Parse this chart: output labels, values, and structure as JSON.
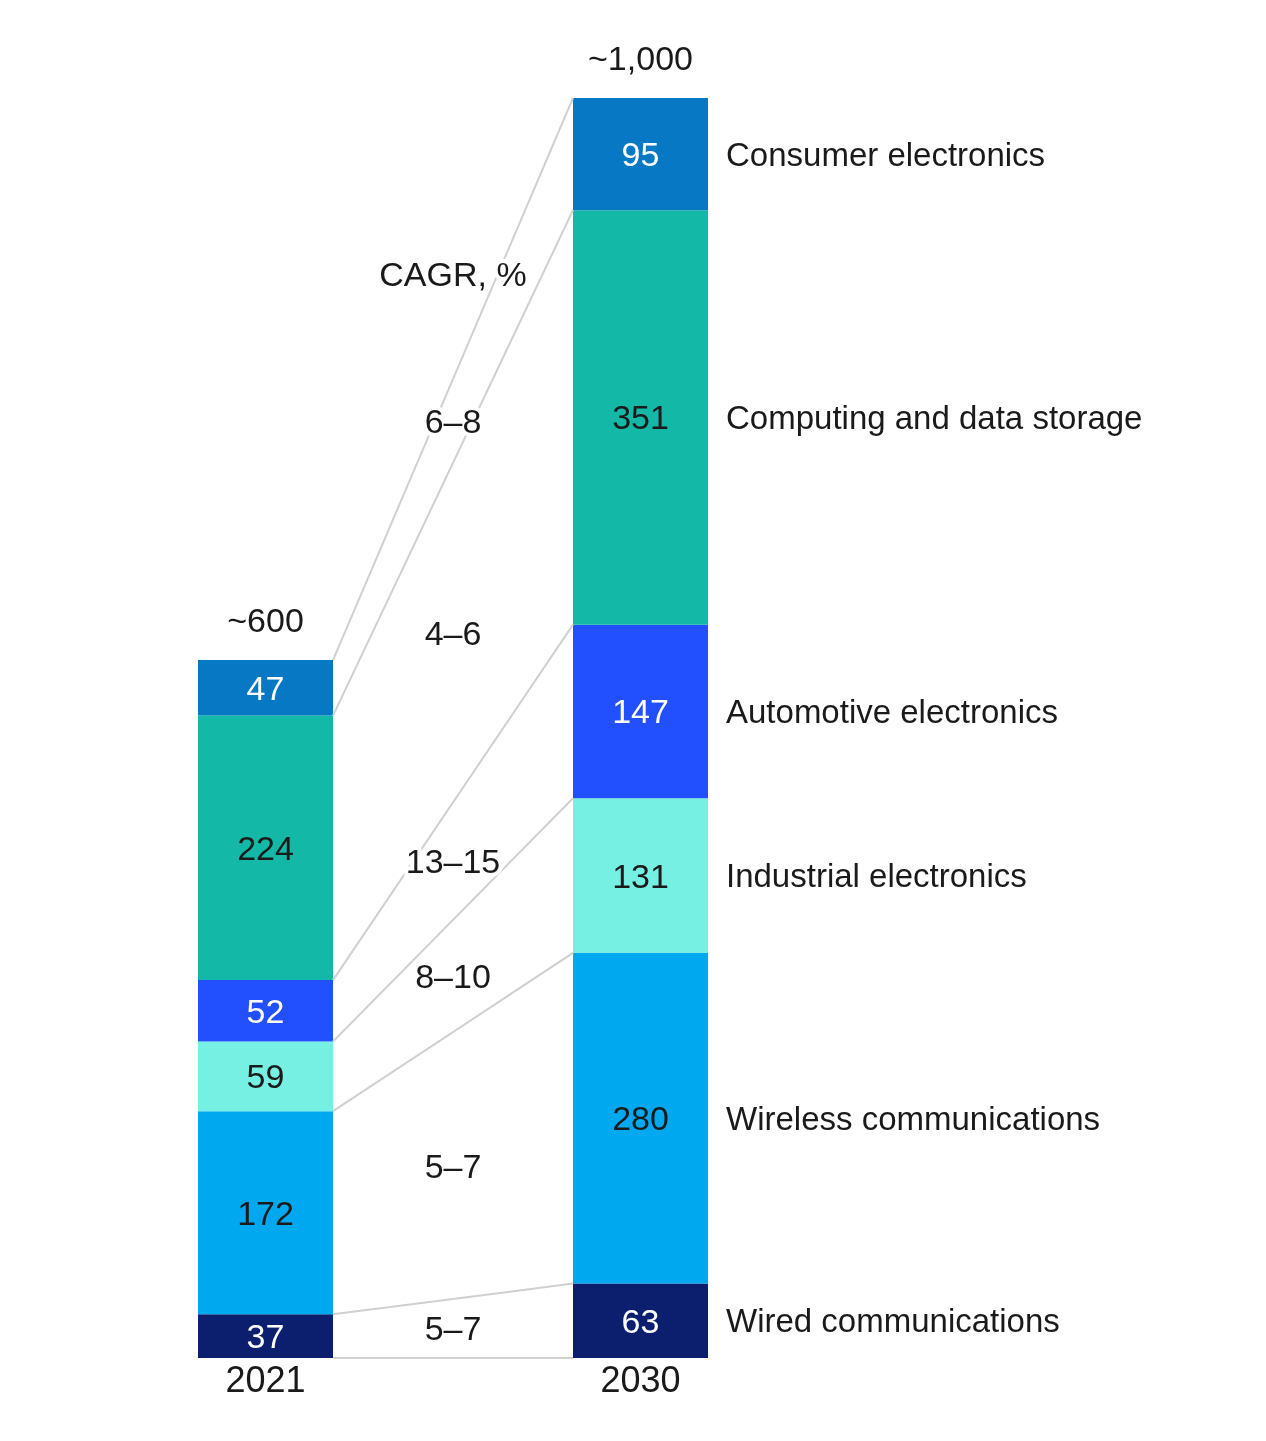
{
  "chart_data": {
    "type": "bar",
    "stacked": true,
    "categories": [
      "2021",
      "2030"
    ],
    "series": [
      {
        "name": "Wired communications",
        "color": "#0b1f6e",
        "values": [
          37,
          63
        ]
      },
      {
        "name": "Wireless communications",
        "color": "#00a8f0",
        "values": [
          172,
          280
        ]
      },
      {
        "name": "Industrial electronics",
        "color": "#76f0e3",
        "values": [
          59,
          131
        ]
      },
      {
        "name": "Automotive electronics",
        "color": "#2350ff",
        "values": [
          52,
          147
        ]
      },
      {
        "name": "Computing and data storage",
        "color": "#14b8a6",
        "values": [
          224,
          351
        ]
      },
      {
        "name": "Consumer electronics",
        "color": "#0779c4",
        "values": [
          47,
          95
        ]
      }
    ],
    "data_labels": true,
    "legend": false,
    "grid": false,
    "annotations": [
      "CAGR, %",
      "6–8",
      "4–6",
      "13–15",
      "8–10",
      "5–7",
      "5–7",
      "~600",
      "~1,000"
    ]
  }
}
